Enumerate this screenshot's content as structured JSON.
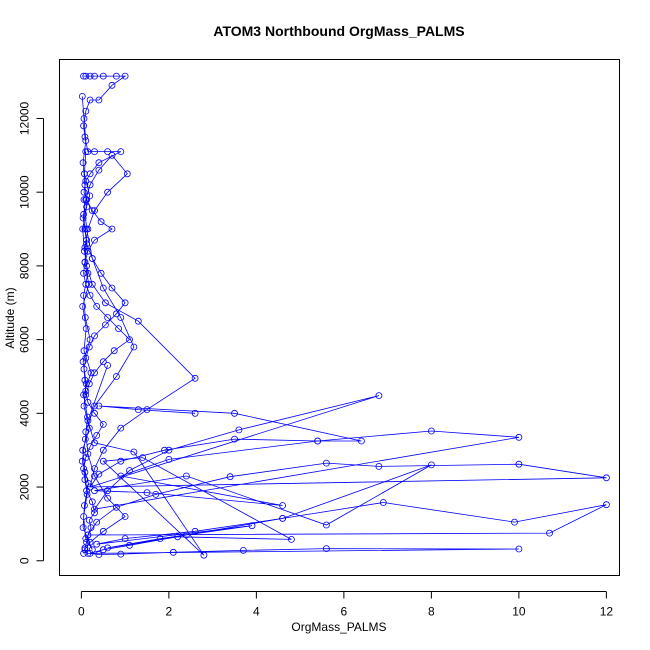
{
  "chart_data": {
    "type": "line",
    "title": "ATOM3 Northbound OrgMass_PALMS",
    "xlabel": "OrgMass_PALMS",
    "ylabel": "Altitude (m)",
    "xlim": [
      -0.5,
      12.3
    ],
    "ylim": [
      -400,
      13600
    ],
    "x_ticks": [
      0,
      2,
      4,
      6,
      8,
      10,
      12
    ],
    "y_ticks": [
      0,
      2000,
      4000,
      6000,
      8000,
      10000,
      12000
    ],
    "series_color": "#0000ff",
    "markers": "open-circle",
    "grid": false,
    "series": [
      {
        "x": [
          0.05,
          0.08,
          0.12,
          0.15,
          0.22,
          0.18,
          0.3,
          0.25,
          0.12,
          0.08,
          0.05,
          0.1,
          0.2,
          0.35,
          0.5,
          0.3,
          0.15,
          0.1,
          0.08,
          0.06,
          0.1,
          0.18,
          0.3,
          0.55,
          0.8,
          1.0,
          0.7,
          0.45,
          0.25,
          0.12,
          0.08,
          0.05,
          0.1,
          0.2,
          0.4,
          0.7,
          1.05,
          0.6,
          0.3,
          0.15,
          0.08,
          0.12,
          0.25,
          0.55,
          1.3,
          2.6,
          1.5,
          0.9,
          0.5,
          0.3,
          0.2,
          6.8,
          3.6,
          2.0,
          1.1,
          0.6,
          0.3,
          10.0,
          8.0,
          5.4,
          3.5,
          1.9,
          0.9,
          0.4,
          0.2,
          12.0,
          10.0,
          6.8,
          5.6,
          3.4,
          1.7,
          0.8,
          0.35,
          0.15,
          10.7,
          12.0,
          9.9,
          6.9,
          4.6,
          2.4,
          1.1,
          0.5,
          0.2,
          10.0,
          5.6,
          3.7,
          2.1,
          0.9,
          0.4,
          0.15,
          0.08,
          0.2,
          0.5,
          1.0,
          0.6,
          0.3,
          0.15,
          0.1,
          0.3,
          0.8,
          1.2,
          0.9,
          0.5,
          0.25,
          0.12,
          0.06
        ],
        "y": [
          200,
          350,
          500,
          700,
          900,
          1100,
          1300,
          1600,
          1900,
          2200,
          2500,
          2800,
          3100,
          3400,
          3700,
          4000,
          4300,
          4600,
          4900,
          5200,
          5500,
          5800,
          6100,
          6400,
          6700,
          7000,
          7400,
          7800,
          8200,
          8600,
          9000,
          9400,
          9800,
          10200,
          10600,
          11000,
          10500,
          10000,
          9500,
          9000,
          8500,
          8000,
          7500,
          7000,
          6500,
          4950,
          4100,
          3600,
          3000,
          2500,
          2000,
          4480,
          3550,
          3000,
          2450,
          1900,
          1400,
          3350,
          3520,
          3250,
          3300,
          3000,
          2700,
          2350,
          2000,
          2250,
          2620,
          2560,
          2650,
          2280,
          1800,
          1450,
          1050,
          700,
          750,
          1520,
          1050,
          1580,
          1150,
          700,
          420,
          300,
          200,
          320,
          330,
          280,
          230,
          180,
          170,
          200,
          300,
          500,
          800,
          1200,
          1700,
          2300,
          2900,
          3500,
          4200,
          5000,
          5800,
          6600,
          7400,
          8200,
          9000,
          9800
        ]
      },
      {
        "x": [
          0.05,
          0.1,
          0.2,
          0.3,
          0.5,
          0.8,
          1.0,
          0.7,
          0.4,
          0.2,
          0.1,
          0.05,
          0.08,
          0.15,
          0.3,
          0.6,
          0.9,
          0.4,
          0.2,
          0.1,
          0.06,
          0.12,
          0.25,
          0.45,
          0.7,
          0.3,
          0.15,
          0.08,
          0.05,
          0.1,
          0.2,
          0.35,
          0.6,
          0.85,
          1.1,
          0.75,
          0.5,
          0.3,
          0.18,
          0.1
        ],
        "y": [
          13150,
          13150,
          13150,
          13150,
          13150,
          13150,
          13150,
          12900,
          12500,
          12500,
          12200,
          11800,
          11500,
          11100,
          11100,
          11100,
          11100,
          10800,
          10500,
          10300,
          10000,
          9800,
          9500,
          9200,
          9000,
          8700,
          8400,
          8100,
          7800,
          7500,
          7200,
          6900,
          6600,
          6300,
          6000,
          5700,
          5400,
          5100,
          4800,
          4500
        ]
      },
      {
        "x": [
          0.02,
          0.06,
          0.1,
          0.04,
          0.08,
          0.12,
          0.03,
          0.07,
          0.15,
          0.05,
          0.09,
          0.2,
          0.04,
          0.11,
          0.06,
          0.18,
          0.03,
          0.08,
          0.13,
          0.05,
          0.1,
          0.25,
          0.04,
          0.07,
          0.16,
          0.02,
          0.09,
          0.14,
          0.05,
          0.22,
          0.06,
          0.11,
          0.03,
          0.17,
          0.08,
          0.12,
          0.04,
          0.19,
          0.07,
          0.1
        ],
        "y": [
          12600,
          12000,
          11400,
          10800,
          10200,
          9600,
          9000,
          8400,
          7800,
          7200,
          6600,
          6000,
          5400,
          4800,
          4200,
          3600,
          3000,
          2400,
          1800,
          1200,
          600,
          300,
          900,
          1500,
          2100,
          2700,
          3300,
          3900,
          4500,
          5100,
          5700,
          6300,
          6900,
          7500,
          8100,
          8700,
          9300,
          9900,
          10500,
          11100
        ]
      },
      {
        "x": [
          2.6,
          1.3,
          0.4,
          3.5,
          6.4,
          5.4,
          2.0,
          0.9,
          4.6,
          1.5,
          0.3,
          2.4,
          5.6,
          8.0,
          4.6,
          2.6,
          1.0,
          0.35,
          3.9,
          1.8,
          0.6,
          2.2,
          4.8,
          1.4,
          0.5,
          2.8,
          1.2,
          0.3,
          0.15,
          0.6
        ],
        "y": [
          4000,
          4100,
          4200,
          4000,
          3250,
          3250,
          2750,
          2300,
          1500,
          1850,
          1900,
          2300,
          970,
          2600,
          1150,
          800,
          600,
          450,
          950,
          600,
          350,
          650,
          580,
          2800,
          2700,
          150,
          2950,
          3200,
          3800,
          5300
        ]
      }
    ]
  }
}
